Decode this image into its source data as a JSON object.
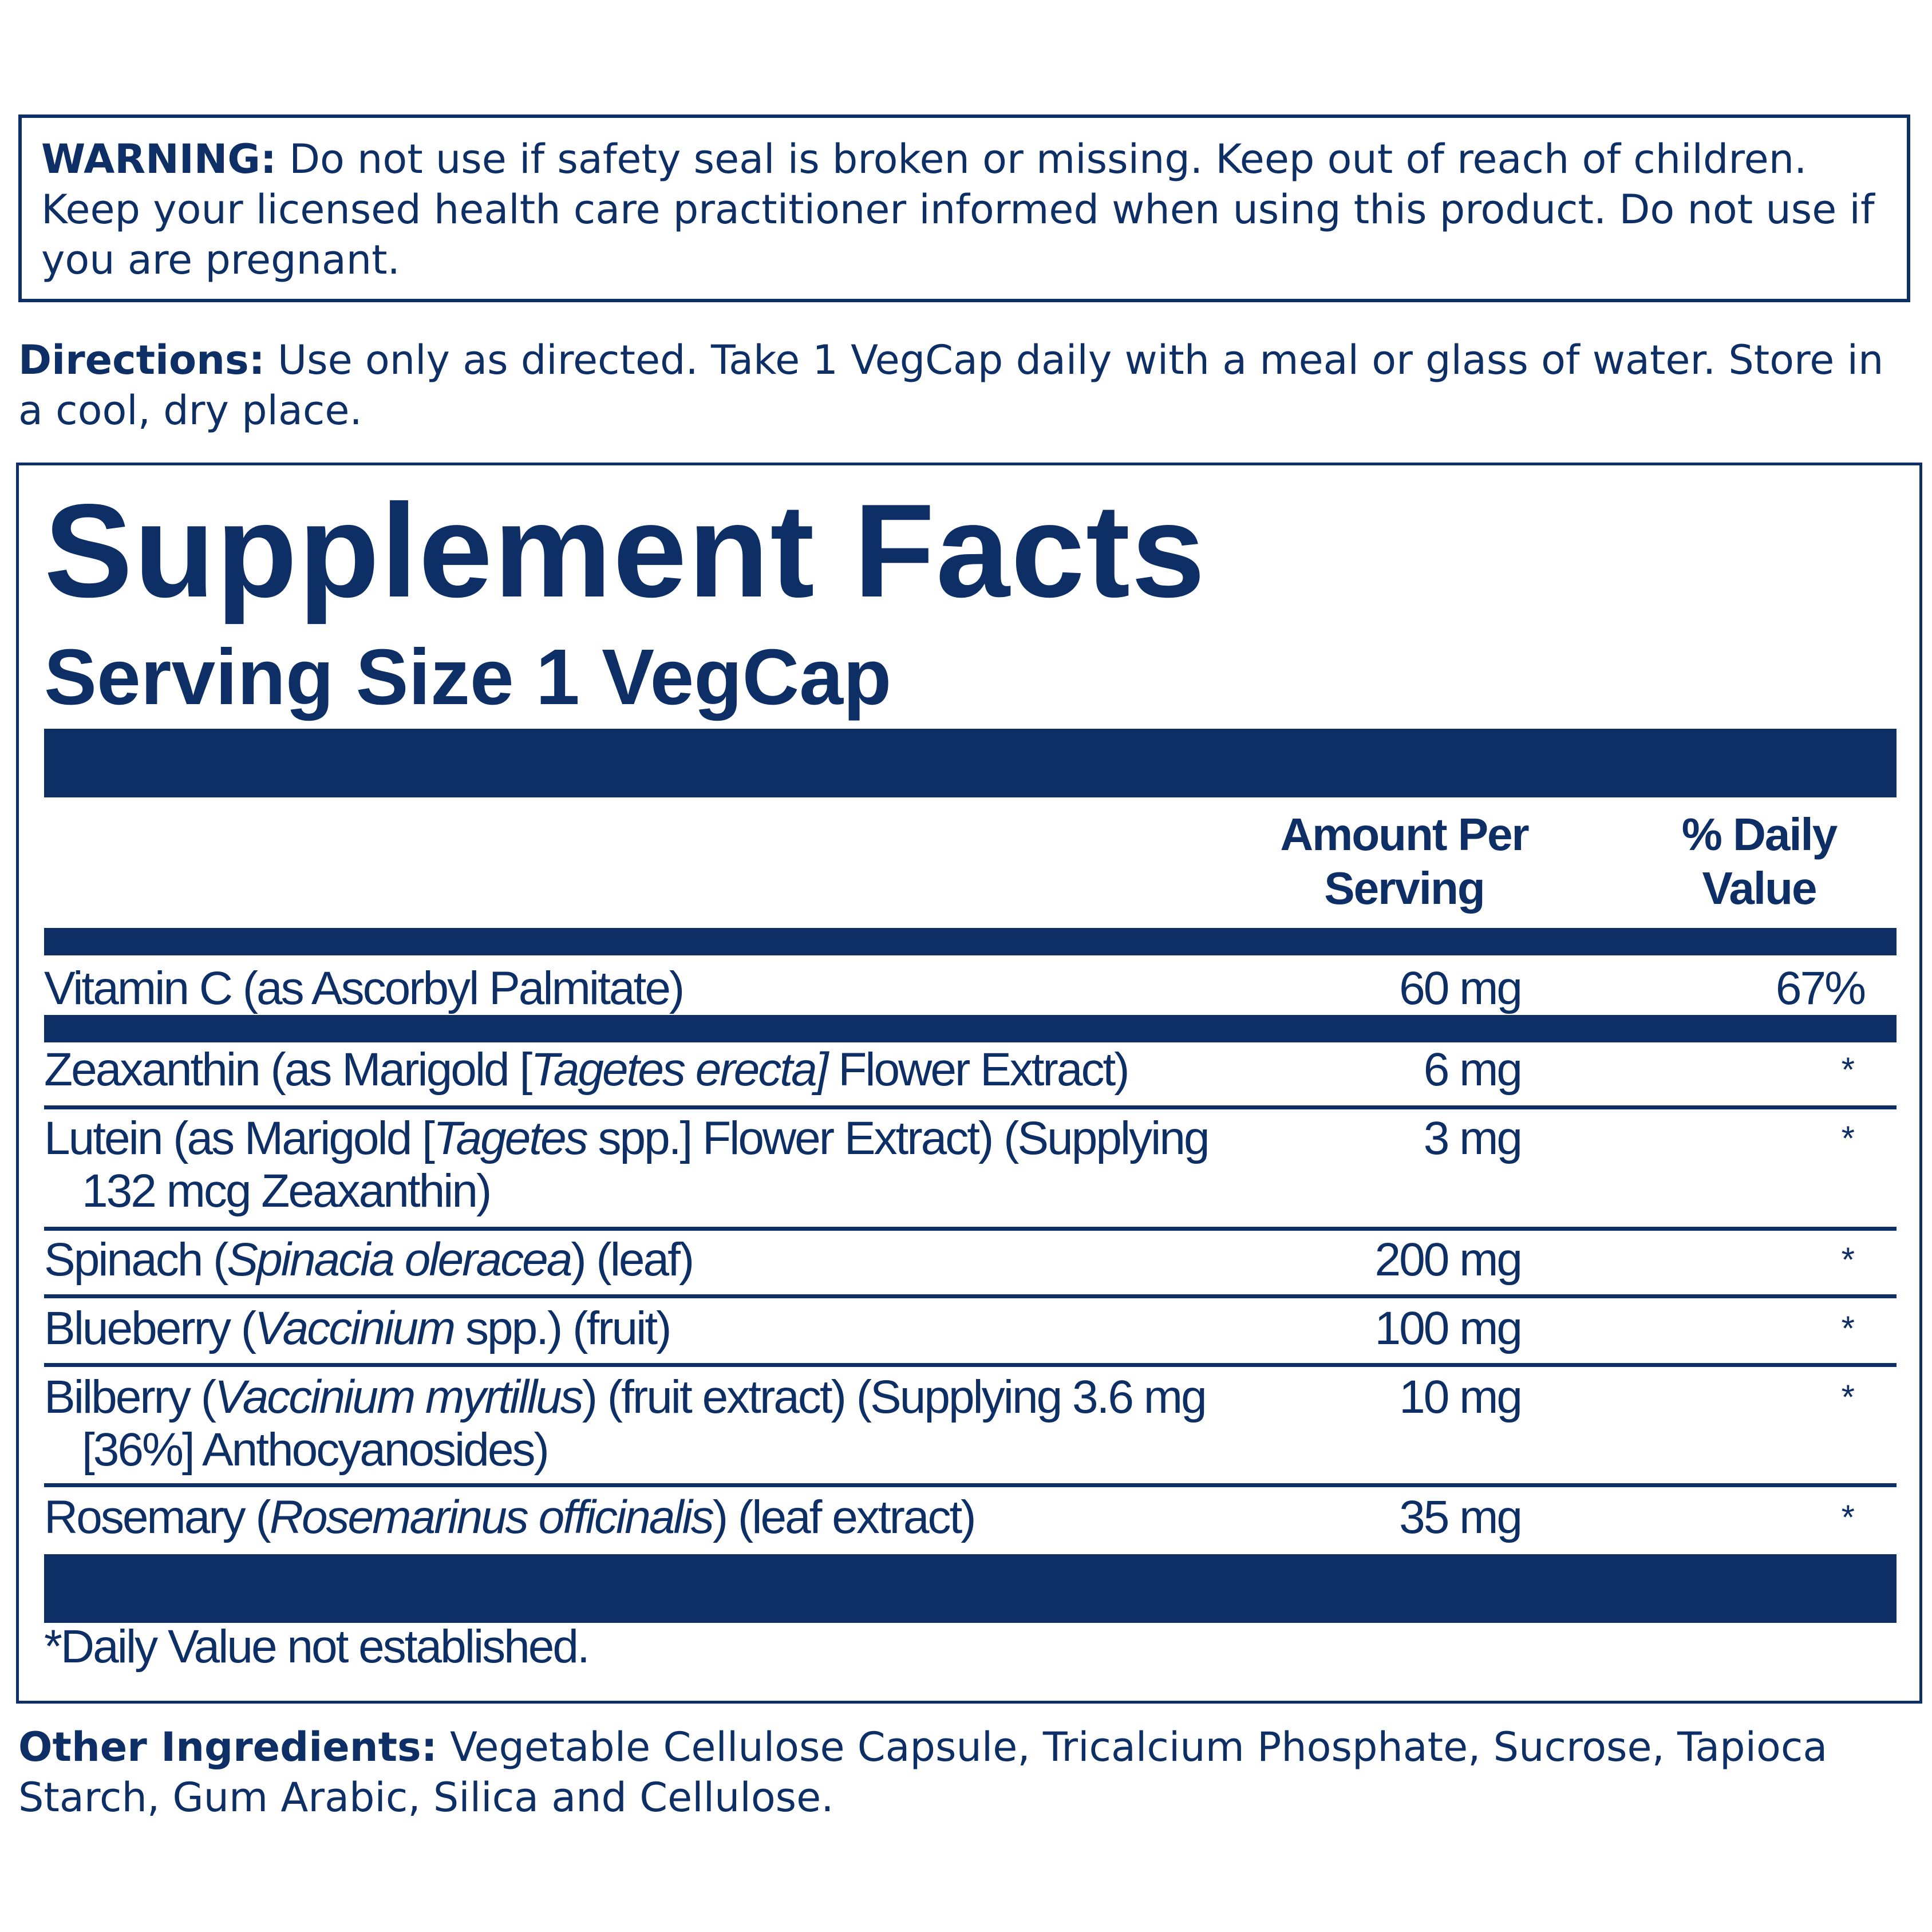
{
  "warning": {
    "label": "WARNING:",
    "text": " Do not use if safety seal is broken or missing. Keep out of reach of children. Keep your licensed health care practitioner informed when using this product. Do not use if you are pregnant."
  },
  "directions": {
    "label": "Directions:",
    "text": " Use only as directed. Take 1 VegCap daily with a meal or glass of water. Store in a cool, dry place."
  },
  "facts": {
    "title": "Supplement Facts",
    "serving": "Serving Size 1 VegCap",
    "col_amount": [
      "Amount Per",
      "Serving"
    ],
    "col_dv": [
      "% Daily",
      "Value"
    ],
    "rows": [
      {
        "name": "Vitamin C (as Ascorbyl Palmitate)",
        "amount": "60 mg",
        "dv": "67%"
      },
      {
        "a": "Zeaxanthin (as Marigold [",
        "i": "Tagetes erecta]",
        "b": " Flower Extract)",
        "amount": "6 mg",
        "dv": "*"
      },
      {
        "a": "Lutein (as Marigold [",
        "i": "Tagetes",
        "b": " spp.] Flower Extract) (Supplying",
        "line2": "132 mcg Zeaxanthin)",
        "amount": "3 mg",
        "dv": "*"
      },
      {
        "a": "Spinach (",
        "i": "Spinacia oleracea",
        "b": ") (leaf)",
        "amount": "200 mg",
        "dv": "*"
      },
      {
        "a": "Blueberry  (",
        "i": "Vaccinium",
        "b": " spp.) (fruit)",
        "amount": "100 mg",
        "dv": "*"
      },
      {
        "a": "Bilberry (",
        "i": "Vaccinium myrtillus",
        "b": ") (fruit extract) (Supplying 3.6 mg",
        "line2": "[36%] Anthocyanosides)",
        "amount": "10 mg",
        "dv": "*"
      },
      {
        "a": "Rosemary (",
        "i": "Rosemarinus officinalis",
        "b": ") (leaf extract)",
        "amount": "35 mg",
        "dv": "*"
      }
    ],
    "footnote": "*Daily Value not established."
  },
  "other": {
    "label": "Other Ingredients:",
    "text": " Vegetable Cellulose Capsule, Tricalcium Phosphate, Sucrose, Tapioca Starch, Gum Arabic, Silica and Cellulose."
  }
}
